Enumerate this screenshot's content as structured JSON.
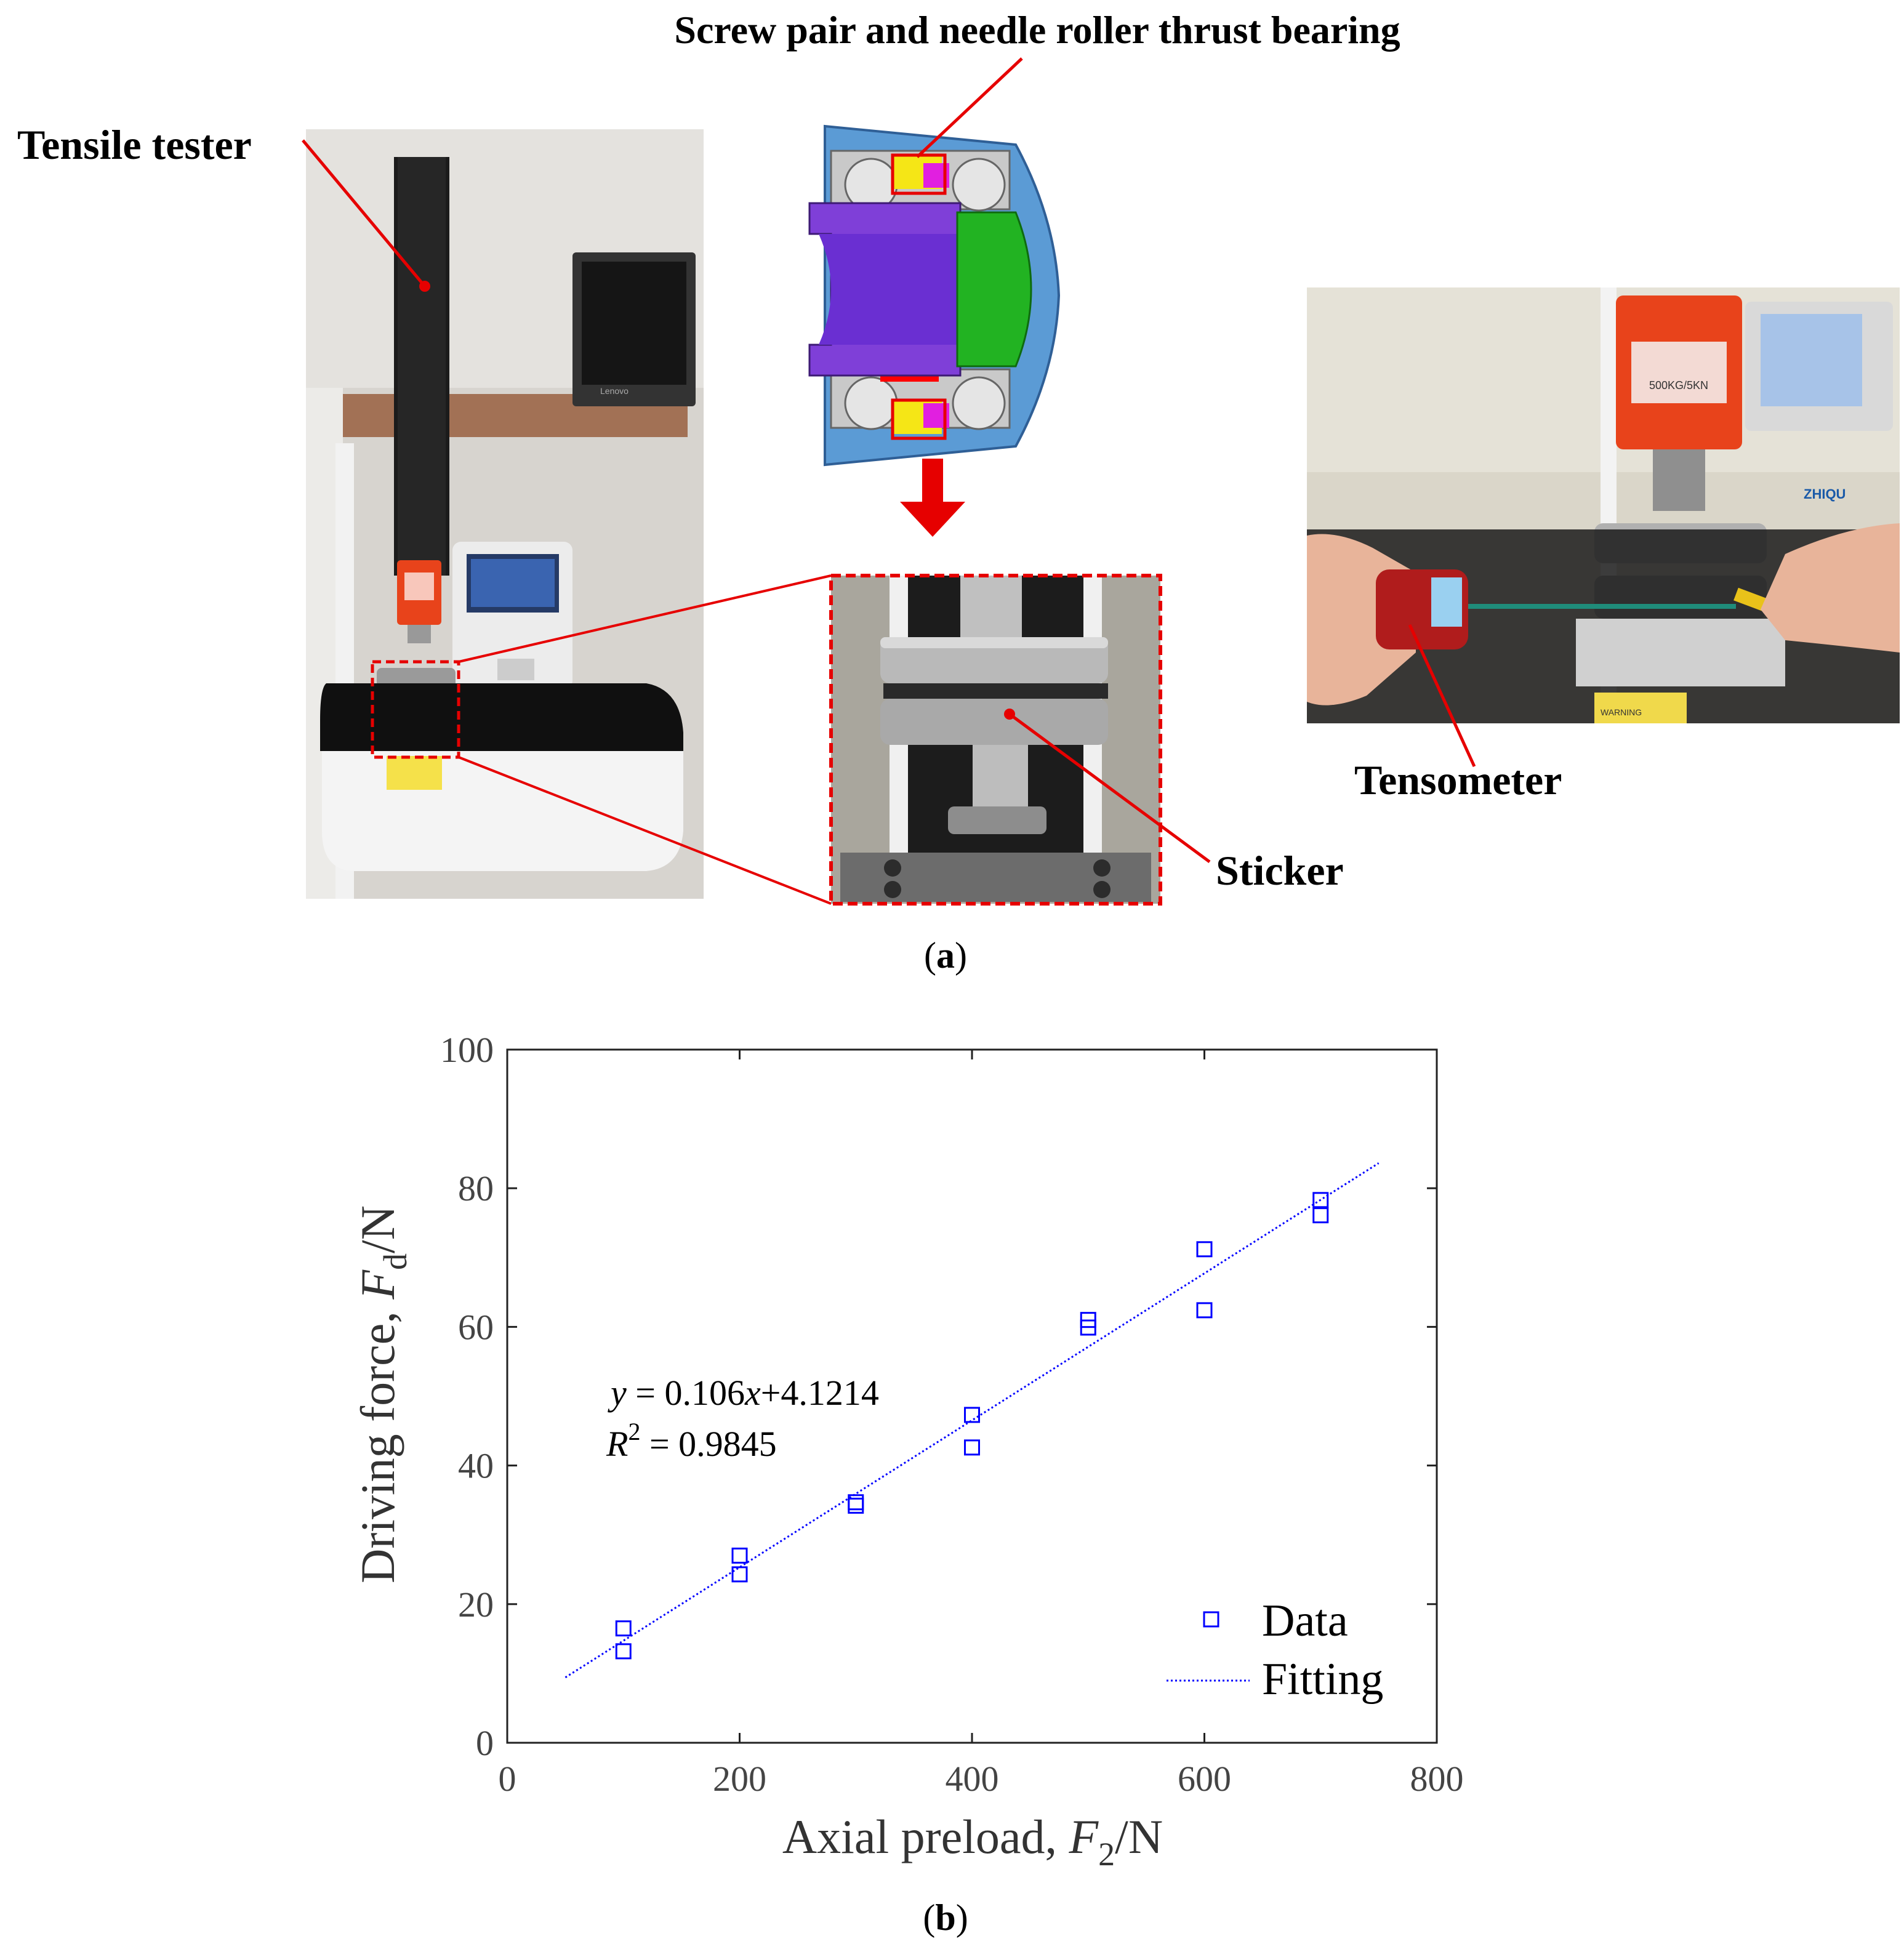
{
  "panel_a": {
    "caption": "(a)",
    "labels": {
      "tensile_tester": "Tensile tester",
      "screw_pair": "Screw pair and needle roller thrust bearing",
      "tensometer": "Tensometer",
      "sticker": "Sticker"
    },
    "photo_text": {
      "monitor_brand": "Lenovo",
      "tester_brand": "ZHIQU",
      "load_cell_label": "500KG/5KN",
      "warning": "WARNING"
    },
    "colors": {
      "callout": "#e60000",
      "housing_blue": "#5b9bd5",
      "shaft_purple": "#7f3fd8",
      "flange_green": "#22b322",
      "load_cell_orange": "#e8431b"
    }
  },
  "panel_b": {
    "caption": "(b)",
    "equation": {
      "line1_y": "y",
      "line1_rest": " = 0.106",
      "line1_x": "x",
      "line1_tail": "+4.1214",
      "line2_r": "R",
      "line2_sup": "2",
      "line2_rest": " = 0.9845"
    },
    "axis_text": {
      "x_main": "Axial preload, ",
      "x_var": "F",
      "x_sub": "2",
      "x_unit": "/N",
      "y_main": "Driving force, ",
      "y_var": "F",
      "y_sub": "d",
      "y_unit": "/N"
    }
  },
  "chart_data": {
    "type": "scatter",
    "xlabel": "Axial preload, F2/N",
    "ylabel": "Driving force, Fd/N",
    "xlim": [
      0,
      800
    ],
    "ylim": [
      0,
      100
    ],
    "x_ticks": [
      "0",
      "200",
      "400",
      "600",
      "800"
    ],
    "y_ticks": [
      "0",
      "20",
      "40",
      "60",
      "80",
      "100"
    ],
    "x_tick_values": [
      0,
      200,
      400,
      600,
      800
    ],
    "y_tick_values": [
      0,
      20,
      40,
      60,
      80,
      100
    ],
    "grid": false,
    "legend_position": "bottom-right",
    "series": [
      {
        "name": "Data",
        "kind": "scatter",
        "marker": "square",
        "color": "#0000ff",
        "points": [
          [
            100,
            16.5
          ],
          [
            100,
            13.2
          ],
          [
            200,
            27.0
          ],
          [
            200,
            24.3
          ],
          [
            300,
            34.7
          ],
          [
            300,
            34.2
          ],
          [
            400,
            47.3
          ],
          [
            400,
            42.6
          ],
          [
            500,
            61.0
          ],
          [
            500,
            59.9
          ],
          [
            600,
            71.2
          ],
          [
            600,
            62.4
          ],
          [
            700,
            78.3
          ],
          [
            700,
            76.1
          ]
        ]
      },
      {
        "name": "Fitting",
        "kind": "line",
        "style": "dotted",
        "color": "#0000ff",
        "slope": 0.106,
        "intercept": 4.1214,
        "x_range": [
          50,
          750
        ]
      }
    ]
  }
}
